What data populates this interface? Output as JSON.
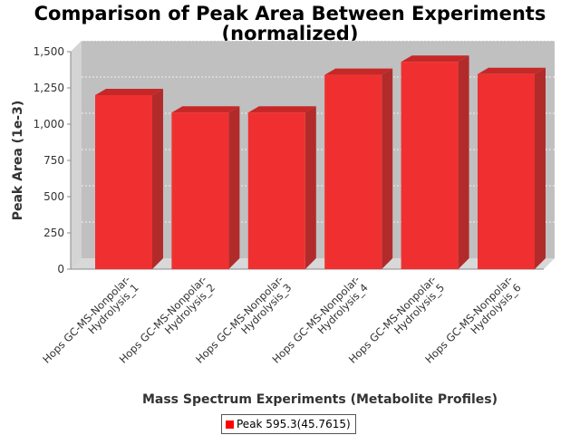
{
  "chart_data": {
    "type": "bar",
    "title_line1": "Comparison of Peak Area Between Experiments",
    "title_line2": "(normalized)",
    "xlabel": "Mass Spectrum Experiments (Metabolite Profiles)",
    "ylabel": "Peak Area (1e-3)",
    "ylim": [
      0,
      1500
    ],
    "yticks": [
      "0",
      "250",
      "500",
      "750",
      "1,000",
      "1,250",
      "1,500"
    ],
    "ytick_values": [
      0,
      250,
      500,
      750,
      1000,
      1250,
      1500
    ],
    "categories": [
      [
        "Hops GC-MS-Nonpolar-",
        "Hydrolysis_1"
      ],
      [
        "Hops GC-MS-Nonpolar-",
        "Hydrolysis_2"
      ],
      [
        "Hops GC-MS-Nonpolar-",
        "Hydrolysis_3"
      ],
      [
        "Hops GC-MS-Nonpolar-",
        "Hydrolysis_4"
      ],
      [
        "Hops GC-MS-Nonpolar-",
        "Hydrolysis_5"
      ],
      [
        "Hops GC-MS-Nonpolar-",
        "Hydrolysis_6"
      ]
    ],
    "series": [
      {
        "name": "Peak 595.3(45.7615)",
        "values": [
          1200,
          1080,
          1080,
          1340,
          1430,
          1345
        ]
      }
    ],
    "grid": true,
    "legend_position": "bottom",
    "colors": {
      "bar": "#ff0000",
      "plot_bg": "#c0c0c0"
    }
  }
}
